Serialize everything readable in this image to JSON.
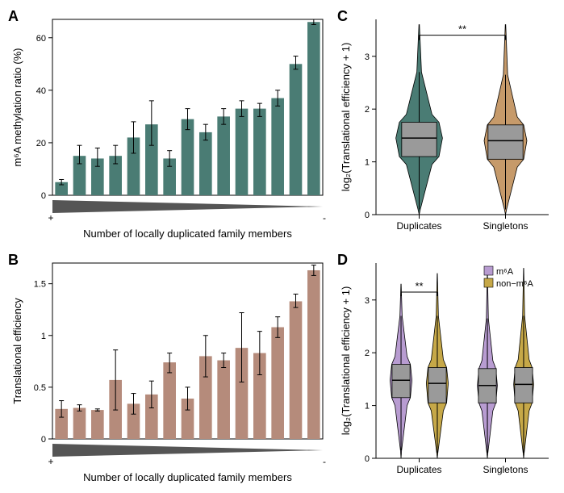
{
  "panelA": {
    "label": "A",
    "type": "bar",
    "ylabel": "m⁶A methylation ratio (%)",
    "xlabel": "Number of locally duplicated family members",
    "bar_color": "#4a7c74",
    "error_color": "#000000",
    "ylim": [
      0,
      67
    ],
    "yticks": [
      0,
      20,
      40,
      60
    ],
    "label_fontsize": 13,
    "tick_fontsize": 11,
    "bars": [
      {
        "v": 5,
        "lo": 4,
        "hi": 6
      },
      {
        "v": 15,
        "lo": 12,
        "hi": 19
      },
      {
        "v": 14,
        "lo": 11,
        "hi": 18
      },
      {
        "v": 15,
        "lo": 12,
        "hi": 19
      },
      {
        "v": 22,
        "lo": 16,
        "hi": 28
      },
      {
        "v": 27,
        "lo": 19,
        "hi": 36
      },
      {
        "v": 14,
        "lo": 11,
        "hi": 17
      },
      {
        "v": 29,
        "lo": 25,
        "hi": 33
      },
      {
        "v": 24,
        "lo": 21,
        "hi": 27
      },
      {
        "v": 30,
        "lo": 27,
        "hi": 33
      },
      {
        "v": 33,
        "lo": 30,
        "hi": 36
      },
      {
        "v": 33,
        "lo": 30,
        "hi": 35
      },
      {
        "v": 37,
        "lo": 34,
        "hi": 40
      },
      {
        "v": 50,
        "lo": 48,
        "hi": 53
      },
      {
        "v": 66,
        "lo": 65,
        "hi": 67
      }
    ],
    "wedge_plus": "+",
    "wedge_minus": "-"
  },
  "panelB": {
    "label": "B",
    "type": "bar",
    "ylabel": "Translational efficiency",
    "xlabel": "Number of locally duplicated family members",
    "bar_color": "#b58b7b",
    "error_color": "#000000",
    "ylim": [
      0,
      1.7
    ],
    "yticks": [
      0,
      0.5,
      1.0,
      1.5
    ],
    "label_fontsize": 13,
    "tick_fontsize": 11,
    "bars": [
      {
        "v": 0.29,
        "lo": 0.21,
        "hi": 0.37
      },
      {
        "v": 0.3,
        "lo": 0.27,
        "hi": 0.33
      },
      {
        "v": 0.28,
        "lo": 0.27,
        "hi": 0.29
      },
      {
        "v": 0.57,
        "lo": 0.28,
        "hi": 0.86
      },
      {
        "v": 0.34,
        "lo": 0.24,
        "hi": 0.44
      },
      {
        "v": 0.43,
        "lo": 0.3,
        "hi": 0.56
      },
      {
        "v": 0.74,
        "lo": 0.64,
        "hi": 0.83
      },
      {
        "v": 0.39,
        "lo": 0.28,
        "hi": 0.5
      },
      {
        "v": 0.8,
        "lo": 0.6,
        "hi": 1.0
      },
      {
        "v": 0.76,
        "lo": 0.69,
        "hi": 0.83
      },
      {
        "v": 0.88,
        "lo": 0.55,
        "hi": 1.22
      },
      {
        "v": 0.83,
        "lo": 0.62,
        "hi": 1.04
      },
      {
        "v": 1.08,
        "lo": 0.98,
        "hi": 1.18
      },
      {
        "v": 1.33,
        "lo": 1.27,
        "hi": 1.4
      },
      {
        "v": 1.63,
        "lo": 1.58,
        "hi": 1.68
      }
    ],
    "wedge_plus": "+",
    "wedge_minus": "-"
  },
  "panelC": {
    "label": "C",
    "type": "violin",
    "ylabel": "log₂(Translational efficiency + 1)",
    "categories": [
      "Duplicates",
      "Singletons"
    ],
    "colors": [
      "#4a7c74",
      "#c69a6a"
    ],
    "box_fill": "#9a9a9a",
    "ylim": [
      0,
      3.7
    ],
    "yticks": [
      0,
      1,
      2,
      3
    ],
    "label_fontsize": 13,
    "tick_fontsize": 11,
    "sig_label": "**",
    "violins": [
      {
        "median": 1.45,
        "q1": 1.1,
        "q3": 1.75,
        "wlo": 0.1,
        "whi": 2.7,
        "tail_hi": 3.6,
        "width": 0.6
      },
      {
        "median": 1.4,
        "q1": 1.05,
        "q3": 1.7,
        "wlo": 0.1,
        "whi": 2.65,
        "tail_hi": 3.6,
        "width": 0.55
      }
    ]
  },
  "panelD": {
    "label": "D",
    "type": "violin",
    "ylabel": "log₂(Translational efficiency + 1)",
    "categories": [
      "Duplicates",
      "Singletons"
    ],
    "legend": [
      {
        "label": "m⁶A",
        "color": "#b89cd1"
      },
      {
        "label": "non−m⁶A",
        "color": "#c6a848"
      }
    ],
    "box_fill": "#9a9a9a",
    "ylim": [
      0,
      3.7
    ],
    "yticks": [
      0,
      1,
      2,
      3
    ],
    "label_fontsize": 13,
    "tick_fontsize": 11,
    "sig_label": "**",
    "groups": [
      [
        {
          "median": 1.48,
          "q1": 1.15,
          "q3": 1.78,
          "wlo": 0.15,
          "whi": 2.7,
          "tail_hi": 3.3,
          "width": 0.55
        },
        {
          "median": 1.42,
          "q1": 1.05,
          "q3": 1.72,
          "wlo": 0.1,
          "whi": 2.7,
          "tail_hi": 3.5,
          "width": 0.55
        }
      ],
      [
        {
          "median": 1.38,
          "q1": 1.05,
          "q3": 1.7,
          "wlo": 0.1,
          "whi": 2.65,
          "tail_hi": 3.5,
          "width": 0.5
        },
        {
          "median": 1.4,
          "q1": 1.05,
          "q3": 1.72,
          "wlo": 0.1,
          "whi": 2.7,
          "tail_hi": 3.6,
          "width": 0.5
        }
      ]
    ]
  },
  "wedge_color": "#555555"
}
